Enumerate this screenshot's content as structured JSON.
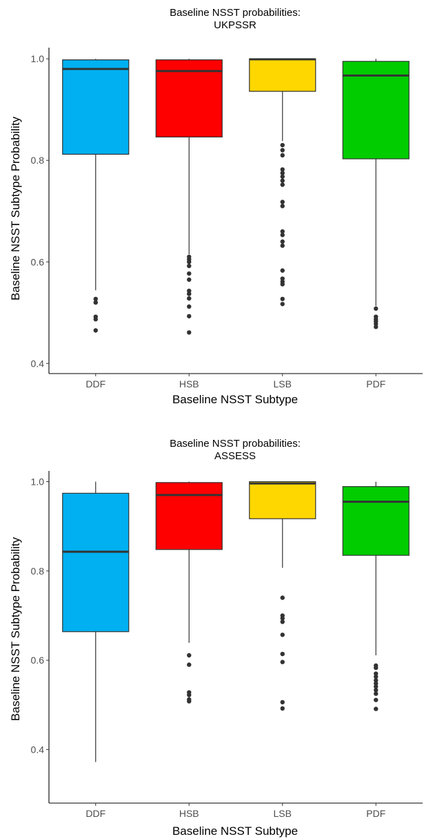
{
  "chart_data": [
    {
      "type": "boxplot",
      "title": [
        "Baseline NSST probabilities:",
        "UKPSSR"
      ],
      "xlabel": "Baseline NSST Subtype",
      "ylabel": "Baseline NSST Subtype Probability",
      "ylim": [
        0.38,
        1.022
      ],
      "yticks": [
        "0.4",
        "0.6",
        "0.8",
        "1.0"
      ],
      "categories": [
        "DDF",
        "HSB",
        "LSB",
        "PDF"
      ],
      "colors": [
        "#00B0F0",
        "#FF0000",
        "#FFD700",
        "#00CC00"
      ],
      "boxes": [
        {
          "category": "DDF",
          "whisker_low": 0.544,
          "q1": 0.812,
          "median": 0.98,
          "q3": 0.998,
          "whisker_high": 1.0,
          "outliers": [
            0.527,
            0.52,
            0.492,
            0.487,
            0.465
          ]
        },
        {
          "category": "HSB",
          "whisker_low": 0.615,
          "q1": 0.846,
          "median": 0.976,
          "q3": 0.998,
          "whisker_high": 1.0,
          "outliers": [
            0.61,
            0.605,
            0.6,
            0.592,
            0.577,
            0.565,
            0.543,
            0.537,
            0.528,
            0.512,
            0.493,
            0.461
          ]
        },
        {
          "category": "LSB",
          "whisker_low": 0.838,
          "q1": 0.936,
          "median": 0.999,
          "q3": 1.0,
          "whisker_high": 1.0,
          "outliers": [
            0.83,
            0.82,
            0.81,
            0.782,
            0.775,
            0.768,
            0.76,
            0.752,
            0.718,
            0.71,
            0.66,
            0.653,
            0.64,
            0.632,
            0.583,
            0.567,
            0.561,
            0.556,
            0.527,
            0.517
          ]
        },
        {
          "category": "PDF",
          "whisker_low": 0.513,
          "q1": 0.803,
          "median": 0.967,
          "q3": 0.995,
          "whisker_high": 1.0,
          "outliers": [
            0.508,
            0.492,
            0.487,
            0.483,
            0.478,
            0.472
          ]
        }
      ]
    },
    {
      "type": "boxplot",
      "title": [
        "Baseline NSST probabilities:",
        "ASSESS"
      ],
      "xlabel": "Baseline NSST Subtype",
      "ylabel": "Baseline NSST Subtype Probability",
      "ylim": [
        0.28,
        1.024
      ],
      "yticks": [
        "0.4",
        "0.6",
        "0.8",
        "1.0"
      ],
      "categories": [
        "DDF",
        "HSB",
        "LSB",
        "PDF"
      ],
      "colors": [
        "#00B0F0",
        "#FF0000",
        "#FFD700",
        "#00CC00"
      ],
      "boxes": [
        {
          "category": "DDF",
          "whisker_low": 0.372,
          "q1": 0.664,
          "median": 0.843,
          "q3": 0.974,
          "whisker_high": 1.0,
          "outliers": []
        },
        {
          "category": "HSB",
          "whisker_low": 0.639,
          "q1": 0.848,
          "median": 0.97,
          "q3": 0.998,
          "whisker_high": 1.0,
          "outliers": [
            0.611,
            0.59,
            0.528,
            0.522,
            0.512,
            0.508
          ]
        },
        {
          "category": "LSB",
          "whisker_low": 0.807,
          "q1": 0.917,
          "median": 0.996,
          "q3": 1.0,
          "whisker_high": 1.0,
          "outliers": [
            0.74,
            0.7,
            0.694,
            0.686,
            0.657,
            0.614,
            0.596,
            0.506,
            0.492
          ]
        },
        {
          "category": "PDF",
          "whisker_low": 0.611,
          "q1": 0.835,
          "median": 0.955,
          "q3": 0.989,
          "whisker_high": 1.0,
          "outliers": [
            0.588,
            0.583,
            0.57,
            0.563,
            0.555,
            0.548,
            0.541,
            0.533,
            0.525,
            0.511,
            0.491
          ]
        }
      ]
    }
  ]
}
